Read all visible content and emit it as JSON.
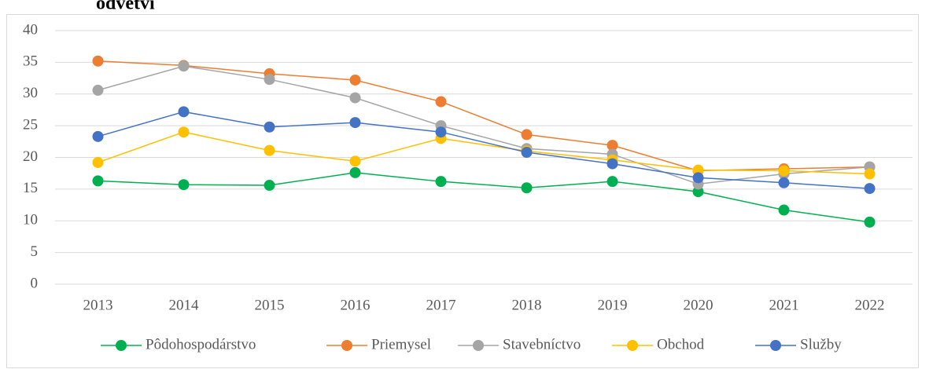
{
  "chart_data": {
    "type": "line",
    "title": "odvetví",
    "categories": [
      "2013",
      "2014",
      "2015",
      "2016",
      "2017",
      "2018",
      "2019",
      "2020",
      "2021",
      "2022"
    ],
    "series": [
      {
        "name": "Pôdohospodárstvo",
        "color": "#00b050",
        "values": [
          16.3,
          15.7,
          15.6,
          17.6,
          16.2,
          15.2,
          16.2,
          14.6,
          11.7,
          9.8
        ]
      },
      {
        "name": "Priemysel",
        "color": "#ed7d31",
        "values": [
          35.2,
          34.5,
          33.2,
          32.2,
          28.8,
          23.6,
          21.9,
          17.9,
          18.2,
          18.5
        ]
      },
      {
        "name": "Stavebníctvo",
        "color": "#a5a5a5",
        "values": [
          30.6,
          34.4,
          32.3,
          29.4,
          25.0,
          21.4,
          20.5,
          15.8,
          17.4,
          18.5
        ]
      },
      {
        "name": "Obchod",
        "color": "#ffc000",
        "values": [
          19.2,
          24.0,
          21.1,
          19.4,
          23.0,
          21.0,
          19.6,
          18.0,
          17.9,
          17.4
        ]
      },
      {
        "name": "Služby",
        "color": "#4472c4",
        "values": [
          23.3,
          27.2,
          24.8,
          25.5,
          24.0,
          20.8,
          19.0,
          16.8,
          16.0,
          15.1
        ]
      }
    ],
    "ylim": [
      0,
      40
    ],
    "yticks": [
      0,
      5,
      10,
      15,
      20,
      25,
      30,
      35,
      40
    ],
    "grid": true,
    "legend": "bottom"
  }
}
